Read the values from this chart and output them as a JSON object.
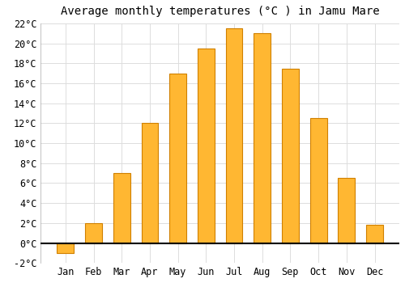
{
  "title": "Average monthly temperatures (°C ) in Jamu Mare",
  "months": [
    "Jan",
    "Feb",
    "Mar",
    "Apr",
    "May",
    "Jun",
    "Jul",
    "Aug",
    "Sep",
    "Oct",
    "Nov",
    "Dec"
  ],
  "temperatures": [
    -1.0,
    2.0,
    7.0,
    12.0,
    17.0,
    19.5,
    21.5,
    21.0,
    17.5,
    12.5,
    6.5,
    1.8
  ],
  "bar_color": "#FFB732",
  "bar_edge_color": "#D08000",
  "background_color": "#FFFFFF",
  "plot_bg_color": "#FFFFFF",
  "ylim": [
    -2,
    22
  ],
  "yticks": [
    -2,
    0,
    2,
    4,
    6,
    8,
    10,
    12,
    14,
    16,
    18,
    20,
    22
  ],
  "ytick_labels": [
    "-2°C",
    "0°C",
    "2°C",
    "4°C",
    "6°C",
    "8°C",
    "10°C",
    "12°C",
    "14°C",
    "16°C",
    "18°C",
    "20°C",
    "22°C"
  ],
  "title_fontsize": 10,
  "tick_fontsize": 8.5,
  "grid_color": "#DDDDDD",
  "zero_line_color": "#000000",
  "bar_width": 0.6
}
